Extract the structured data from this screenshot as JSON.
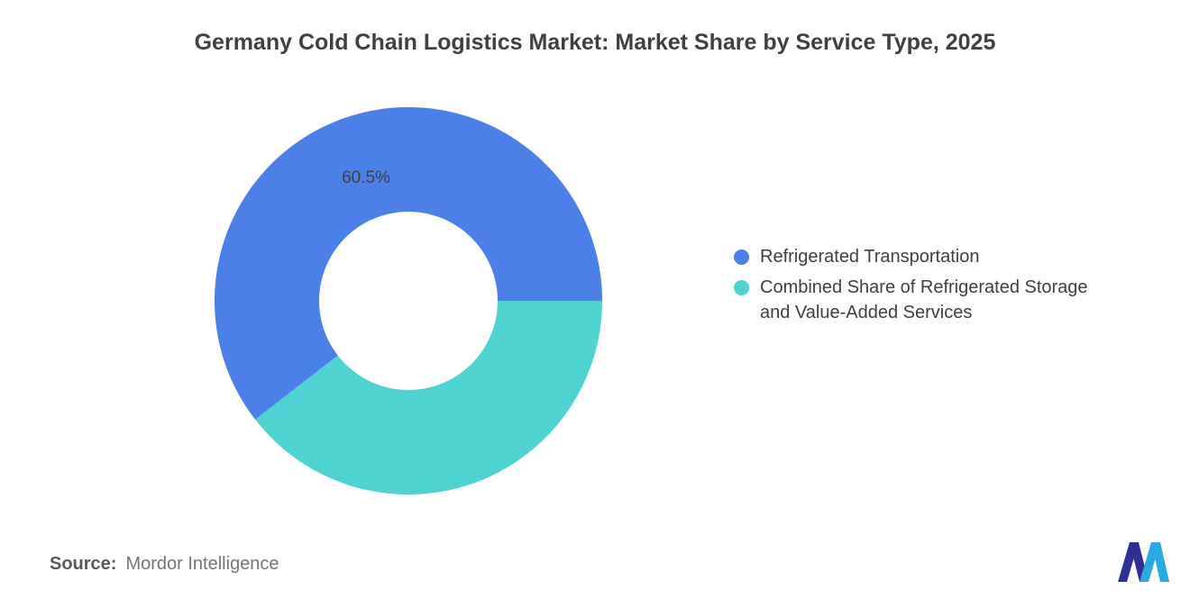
{
  "title": "Germany Cold Chain Logistics Market: Market Share by Service Type, 2025",
  "chart_data": {
    "type": "pie",
    "donut": true,
    "title": "Germany Cold Chain Logistics Market: Market Share by Service Type, 2025",
    "series": [
      {
        "name": "Refrigerated Transportation",
        "value": 60.5,
        "color": "#4A80E8"
      },
      {
        "name": "Combined Share of Refrigerated Storage and Value-Added Services",
        "value": 39.5,
        "color": "#4FD2D2"
      }
    ],
    "data_label": "60.5%",
    "start_angle_deg": 0,
    "direction": "counterclockwise",
    "inner_radius_ratio": 0.46,
    "legend_position": "right",
    "background": "#ffffff"
  },
  "legend": {
    "items": [
      {
        "label": "Refrigerated Transportation",
        "color": "#4A80E8"
      },
      {
        "label": "Combined Share of Refrigerated Storage\nand Value-Added Services",
        "color": "#4FD2D2"
      }
    ]
  },
  "source": {
    "prefix": "Source:",
    "text": "Mordor Intelligence"
  },
  "logo": {
    "name": "mordor-intelligence-logo",
    "dark_color": "#2E3192",
    "light_color": "#29ABE2"
  }
}
